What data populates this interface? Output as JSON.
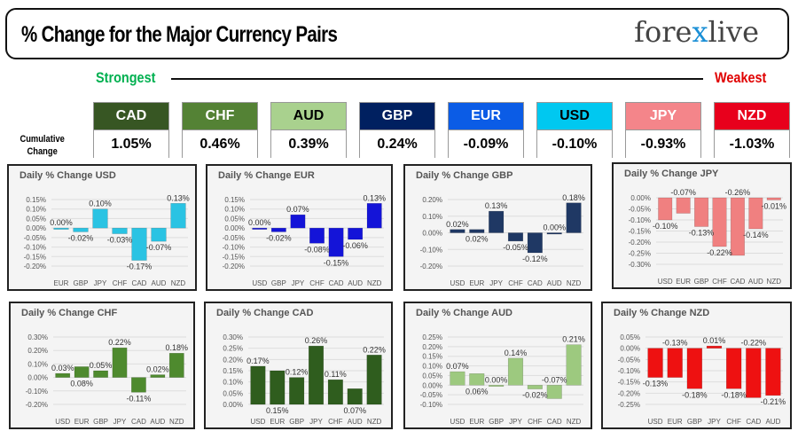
{
  "header": {
    "title": "% Change for the Major Currency Pairs",
    "logo": "forexlive"
  },
  "ranking": {
    "strongest": "Strongest",
    "weakest": "Weakest",
    "row_label_1": "Cumulative",
    "row_label_2": "Change",
    "items": [
      {
        "currency": "CAD",
        "value": "1.05%",
        "color": "#375623",
        "text": "#fff"
      },
      {
        "currency": "CHF",
        "value": "0.46%",
        "color": "#548235",
        "text": "#fff"
      },
      {
        "currency": "AUD",
        "value": "0.39%",
        "color": "#a9d18e",
        "text": "#000"
      },
      {
        "currency": "GBP",
        "value": "0.24%",
        "color": "#002060",
        "text": "#fff"
      },
      {
        "currency": "EUR",
        "value": "-0.09%",
        "color": "#0b5ce6",
        "text": "#fff"
      },
      {
        "currency": "USD",
        "value": "-0.10%",
        "color": "#00c8f0",
        "text": "#000"
      },
      {
        "currency": "JPY",
        "value": "-0.93%",
        "color": "#f4858a",
        "text": "#fff"
      },
      {
        "currency": "NZD",
        "value": "-1.03%",
        "color": "#e8001c",
        "text": "#fff"
      }
    ]
  },
  "chart_data": [
    {
      "type": "bar",
      "title": "Daily % Change USD",
      "color": "#2ac3e3",
      "categories": [
        "EUR",
        "GBP",
        "JPY",
        "CHF",
        "CAD",
        "AUD",
        "NZD"
      ],
      "values": [
        0.0,
        -0.02,
        0.1,
        -0.03,
        -0.17,
        -0.07,
        0.13
      ],
      "ylim": [
        -0.2,
        0.15
      ],
      "ystep": 0.05,
      "grid": true
    },
    {
      "type": "bar",
      "title": "Daily % Change EUR",
      "color": "#1414d8",
      "categories": [
        "USD",
        "GBP",
        "JPY",
        "CHF",
        "CAD",
        "AUD",
        "NZD"
      ],
      "values": [
        0.0,
        -0.02,
        0.07,
        -0.08,
        -0.15,
        -0.06,
        0.13
      ],
      "ylim": [
        -0.2,
        0.15
      ],
      "ystep": 0.05,
      "grid": true
    },
    {
      "type": "bar",
      "title": "Daily % Change GBP",
      "color": "#1f3864",
      "categories": [
        "USD",
        "EUR",
        "JPY",
        "CHF",
        "CAD",
        "AUD",
        "NZD"
      ],
      "values": [
        0.02,
        0.02,
        0.13,
        -0.05,
        -0.12,
        0.0,
        0.18
      ],
      "ylim": [
        -0.2,
        0.2
      ],
      "ystep": 0.1,
      "grid": true
    },
    {
      "type": "bar",
      "title": "Daily % Change JPY",
      "color": "#f08080",
      "categories": [
        "USD",
        "EUR",
        "GBP",
        "CHF",
        "CAD",
        "AUD",
        "NZD"
      ],
      "values": [
        -0.1,
        -0.07,
        -0.13,
        -0.22,
        -0.26,
        -0.14,
        -0.01
      ],
      "ylim": [
        -0.3,
        0.0
      ],
      "ystep": 0.05,
      "grid": true
    },
    {
      "type": "bar",
      "title": "Daily % Change CHF",
      "color": "#4e8a2e",
      "categories": [
        "USD",
        "EUR",
        "GBP",
        "JPY",
        "CAD",
        "AUD",
        "NZD"
      ],
      "values": [
        0.03,
        0.08,
        0.05,
        0.22,
        -0.11,
        0.02,
        0.18
      ],
      "ylim": [
        -0.2,
        0.3
      ],
      "ystep": 0.1,
      "grid": true
    },
    {
      "type": "bar",
      "title": "Daily % Change CAD",
      "color": "#2f5d1e",
      "categories": [
        "USD",
        "EUR",
        "GBP",
        "JPY",
        "CHF",
        "AUD",
        "NZD"
      ],
      "values": [
        0.17,
        0.15,
        0.12,
        0.26,
        0.11,
        0.07,
        0.22
      ],
      "ylim": [
        0.0,
        0.3
      ],
      "ystep": 0.05,
      "grid": true
    },
    {
      "type": "bar",
      "title": "Daily % Change AUD",
      "color": "#9dc97f",
      "categories": [
        "USD",
        "EUR",
        "GBP",
        "JPY",
        "CHF",
        "CAD",
        "NZD"
      ],
      "values": [
        0.07,
        0.06,
        0.0,
        0.14,
        -0.02,
        -0.07,
        0.21
      ],
      "ylim": [
        -0.1,
        0.25
      ],
      "ystep": 0.05,
      "grid": true
    },
    {
      "type": "bar",
      "title": "Daily % Change NZD",
      "color": "#ee1111",
      "categories": [
        "USD",
        "EUR",
        "GBP",
        "JPY",
        "CHF",
        "CAD",
        "AUD"
      ],
      "values": [
        -0.13,
        -0.13,
        -0.18,
        0.01,
        -0.18,
        -0.22,
        -0.21
      ],
      "ylim": [
        -0.25,
        0.05
      ],
      "ystep": 0.05,
      "grid": true
    }
  ]
}
